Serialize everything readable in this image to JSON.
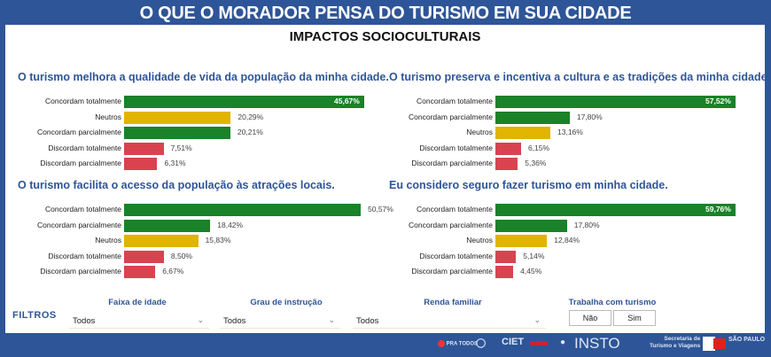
{
  "header": {
    "title": "O QUE O MORADOR PENSA DO TURISMO EM SUA CIDADE"
  },
  "subtitle": "IMPACTOS SOCIOCULTURAIS",
  "colors": {
    "frame": "#2e5597",
    "agree": "#1a8228",
    "neutral": "#e1b400",
    "disagree": "#d9434f",
    "title_blue": "#2e5597"
  },
  "chart_data": [
    {
      "type": "bar",
      "orientation": "horizontal",
      "title": "O turismo melhora a qualidade de vida da população da minha cidade.",
      "categories": [
        "Concordam totalmente",
        "Neutros",
        "Concordam parcialmente",
        "Discordam totalmente",
        "Discordam parcialmente"
      ],
      "values": [
        45.67,
        20.29,
        20.21,
        7.51,
        6.31
      ],
      "labels": [
        "45,67%",
        "20,29%",
        "20,21%",
        "7,51%",
        "6,31%"
      ],
      "groups": [
        "agree",
        "neutral",
        "agree",
        "disagree",
        "disagree"
      ],
      "xlim": [
        0,
        46
      ]
    },
    {
      "type": "bar",
      "orientation": "horizontal",
      "title": "O turismo preserva e incentiva a cultura e as tradições da minha cidade.",
      "categories": [
        "Concordam totalmente",
        "Concordam parcialmente",
        "Neutros",
        "Discordam totalmente",
        "Discordam parcialmente"
      ],
      "values": [
        57.52,
        17.8,
        13.16,
        6.15,
        5.36
      ],
      "labels": [
        "57,52%",
        "17,80%",
        "13,16%",
        "6,15%",
        "5,36%"
      ],
      "groups": [
        "agree",
        "agree",
        "neutral",
        "disagree",
        "disagree"
      ],
      "xlim": [
        0,
        57.5
      ]
    },
    {
      "type": "bar",
      "orientation": "horizontal",
      "title": "O turismo facilita o acesso da população às atrações locais.",
      "categories": [
        "Concordam totalmente",
        "Concordam parcialmente",
        "Neutros",
        "Discordam totalmente",
        "Discordam parcialmente"
      ],
      "values": [
        50.57,
        18.42,
        15.83,
        8.5,
        6.67
      ],
      "labels": [
        "50,57%",
        "18,42%",
        "15,83%",
        "8,50%",
        "6,67%"
      ],
      "groups": [
        "agree",
        "agree",
        "neutral",
        "disagree",
        "disagree"
      ],
      "xlim": [
        0,
        51
      ]
    },
    {
      "type": "bar",
      "orientation": "horizontal",
      "title": "Eu considero seguro fazer turismo em minha cidade.",
      "categories": [
        "Concordam totalmente",
        "Concordam parcialmente",
        "Neutros",
        "Discordam totalmente",
        "Discordam parcialmente"
      ],
      "values": [
        59.76,
        17.8,
        12.84,
        5.14,
        4.45
      ],
      "labels": [
        "59,76%",
        "17,80%",
        "12,84%",
        "5,14%",
        "4,45%"
      ],
      "groups": [
        "agree",
        "agree",
        "neutral",
        "disagree",
        "disagree"
      ],
      "xlim": [
        0,
        60
      ]
    }
  ],
  "filters": {
    "label": "FILTROS",
    "age": {
      "label": "Faixa de idade",
      "value": "Todos"
    },
    "education": {
      "label": "Grau de instrução",
      "value": "Todos"
    },
    "income": {
      "label": "Renda familiar",
      "value": "Todos"
    },
    "tourism_work": {
      "label": "Trabalha com turismo",
      "options": [
        "Não",
        "Sim"
      ]
    }
  },
  "footer": {
    "logos": [
      "PRA TODOS",
      "CIET",
      "INSTO",
      "Secretaria de",
      "Turismo e Viagens",
      "SÃO PAULO"
    ]
  }
}
